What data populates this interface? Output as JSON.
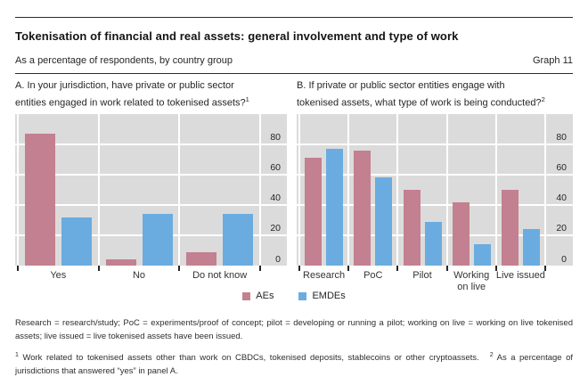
{
  "header": {
    "title": "Tokenisation of financial and real assets: general involvement and type of work",
    "subtitle": "As a percentage of respondents, by country group",
    "graph_label": "Graph 11"
  },
  "legend": {
    "items": [
      {
        "label": "AEs",
        "color": "#c38090"
      },
      {
        "label": "EMDEs",
        "color": "#6aace0"
      }
    ]
  },
  "colors": {
    "aes": "#c38090",
    "emdes": "#6aace0",
    "plot_background": "#dbdbdb",
    "gridline": "#ffffff",
    "rule": "#2b2b2b"
  },
  "chart_data": [
    {
      "type": "bar",
      "panel": "A",
      "title_lines": [
        "A. In your jurisdiction, have private or public sector",
        "entities engaged in work related to tokenised assets?"
      ],
      "title_superscript": "1",
      "categories": [
        "Yes",
        "No",
        "Do not know"
      ],
      "series": [
        {
          "name": "AEs",
          "color": "#c38090",
          "values": [
            87,
            4,
            9
          ]
        },
        {
          "name": "EMDEs",
          "color": "#6aace0",
          "values": [
            32,
            34,
            34
          ]
        }
      ],
      "ylim": [
        0,
        100
      ],
      "yticks": [
        0,
        20,
        40,
        60,
        80
      ],
      "grid": true,
      "ytick_side": "right-inside",
      "legend_position": "bottom-center"
    },
    {
      "type": "bar",
      "panel": "B",
      "title_lines": [
        "B. If private or public sector entities engage with",
        "tokenised assets, what type of work is being conducted?"
      ],
      "title_superscript": "2",
      "categories": [
        "Research",
        "PoC",
        "Pilot",
        "Working on live",
        "Live issued"
      ],
      "series": [
        {
          "name": "AEs",
          "color": "#c38090",
          "values": [
            71,
            76,
            50,
            42,
            50
          ]
        },
        {
          "name": "EMDEs",
          "color": "#6aace0",
          "values": [
            77,
            58,
            29,
            14,
            24
          ]
        }
      ],
      "ylim": [
        0,
        100
      ],
      "yticks": [
        0,
        20,
        40,
        60,
        80
      ],
      "grid": true,
      "ytick_side": "right-inside",
      "legend_position": "bottom-center"
    }
  ],
  "footnotes": {
    "definitions": "Research = research/study; PoC = experiments/proof of concept; pilot = developing or running a pilot; working on live = working on live tokenised assets; live issued = live tokenised assets have been issued.",
    "note1_sup": "1",
    "note1": "Work related to tokenised assets other than work on CBDCs, tokenised deposits, stablecoins or other cryptoassets.",
    "note2_sup": "2",
    "note2": "As a percentage of jurisdictions that answered “yes” in panel A."
  }
}
